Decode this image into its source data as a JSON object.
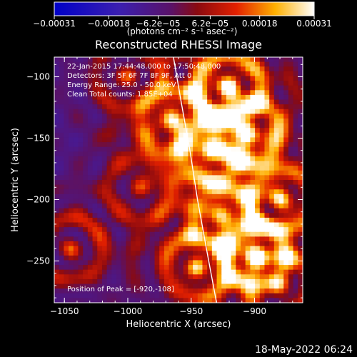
{
  "chart_data": {
    "type": "heatmap",
    "title": "Reconstructed RHESSI Image",
    "xlabel": "Heliocentric X (arcsec)",
    "ylabel": "Heliocentric Y (arcsec)",
    "xlim": [
      -1058,
      -862
    ],
    "ylim": [
      -284,
      -84
    ],
    "x_ticks": [
      -1050,
      -1000,
      -950,
      -900
    ],
    "x_tick_labels": [
      "−1050",
      "−1000",
      "−950",
      "−900"
    ],
    "y_ticks": [
      -250,
      -200,
      -150,
      -100
    ],
    "y_tick_labels": [
      "−250",
      "−200",
      "−150",
      "−100"
    ],
    "colorbar": {
      "colormap": "blue-purple-red-yellow-white",
      "range": [
        -0.00031,
        0.00031
      ],
      "ticks": [
        -0.00031,
        -0.00018,
        -6.2e-05,
        6.2e-05,
        0.00018,
        0.00031
      ],
      "tick_labels": [
        "−0.00031",
        "−0.00018",
        "−6.2e−05",
        "6.2e−05",
        "0.00018",
        "0.00031"
      ],
      "unit_label": "(photons cm⁻² s⁻¹ asec⁻²)"
    },
    "annotations": [
      "22-Jan-2015 17:44:48.000 to 17:50:48.000",
      "Detectors: 3F 5F 6F 7F 8F 9F, Att 0",
      "Energy Range: 25.0 - 50.0 keV",
      "Clean     Total counts: 1.85E+04"
    ],
    "peak_label": "Position of Peak = [-920,-108]",
    "peak_position": [
      -920,
      -108
    ],
    "limb_curve": [
      [
        -964,
        -84
      ],
      [
        -958,
        -120
      ],
      [
        -951,
        -160
      ],
      [
        -945,
        -200
      ],
      [
        -938,
        -240
      ],
      [
        -930,
        -284
      ]
    ],
    "hot_regions": [
      {
        "x": -920,
        "y": -108,
        "value": 0.00031
      },
      {
        "x": -905,
        "y": -145,
        "value": 0.00027
      },
      {
        "x": -935,
        "y": -160,
        "value": 0.00021
      },
      {
        "x": -965,
        "y": -135,
        "value": 0.00019
      },
      {
        "x": -880,
        "y": -200,
        "value": 0.0002
      },
      {
        "x": -925,
        "y": -215,
        "value": 0.00016
      },
      {
        "x": -900,
        "y": -245,
        "value": 0.00025
      },
      {
        "x": -945,
        "y": -255,
        "value": 0.0002
      },
      {
        "x": -880,
        "y": -270,
        "value": 0.00018
      },
      {
        "x": -1045,
        "y": -240,
        "value": 0.00017
      },
      {
        "x": -1000,
        "y": -100,
        "value": 0.00011
      },
      {
        "x": -990,
        "y": -190,
        "value": 0.0001
      }
    ],
    "background_value": -8e-05,
    "grid": false
  },
  "footer": {
    "timestamp": "18-May-2022 06:24"
  }
}
